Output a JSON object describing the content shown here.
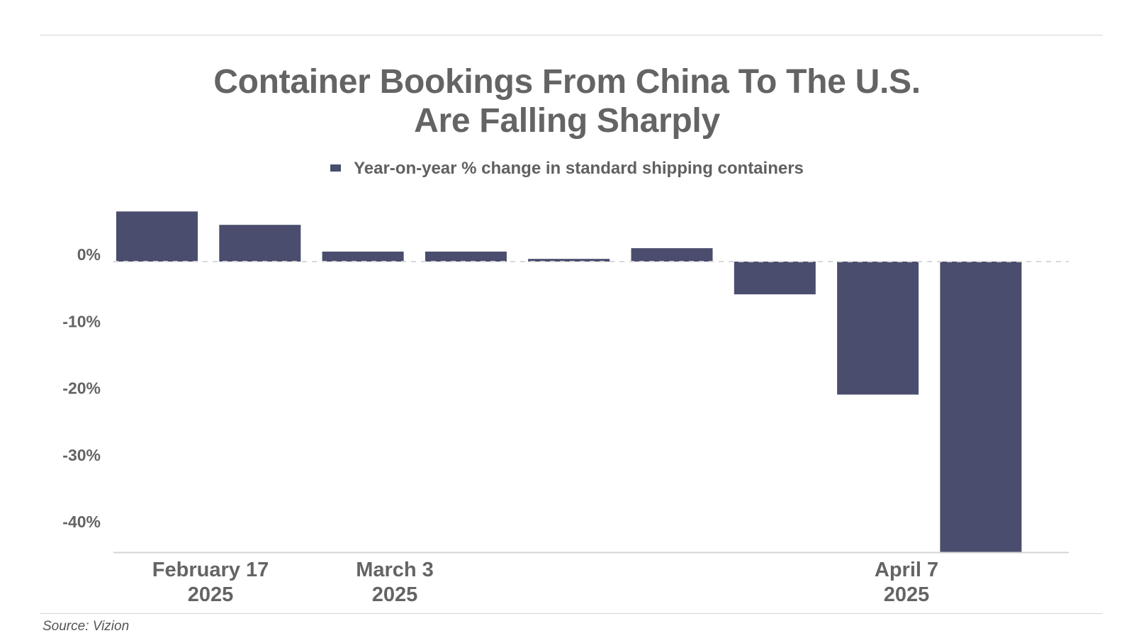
{
  "chart_data": {
    "type": "bar",
    "title": [
      "Container Bookings From China To The U.S.",
      "Are Falling Sharply"
    ],
    "series": [
      {
        "name": "Year-on-year % change in standard shipping containers",
        "color": "#4a4d6d",
        "values": [
          7.5,
          5.5,
          1.5,
          1.5,
          0.4,
          2.0,
          -4.9,
          -19.9,
          -43.5
        ]
      }
    ],
    "x_labels": [
      [
        "February 17",
        "2025"
      ],
      "",
      [
        "March 3",
        "2025"
      ],
      "",
      "",
      "",
      "",
      [
        "April 7",
        "2025"
      ],
      ""
    ],
    "y_ticks": [
      "0%",
      "-10%",
      "-20%",
      "-30%",
      "-40%"
    ],
    "y_tick_values": [
      0,
      -10,
      -20,
      -30,
      -40
    ],
    "ylim": [
      -43.5,
      9
    ],
    "grid": false,
    "zero_line": "dashed",
    "legend_position": "top-center",
    "source": "Source: Vizion"
  }
}
